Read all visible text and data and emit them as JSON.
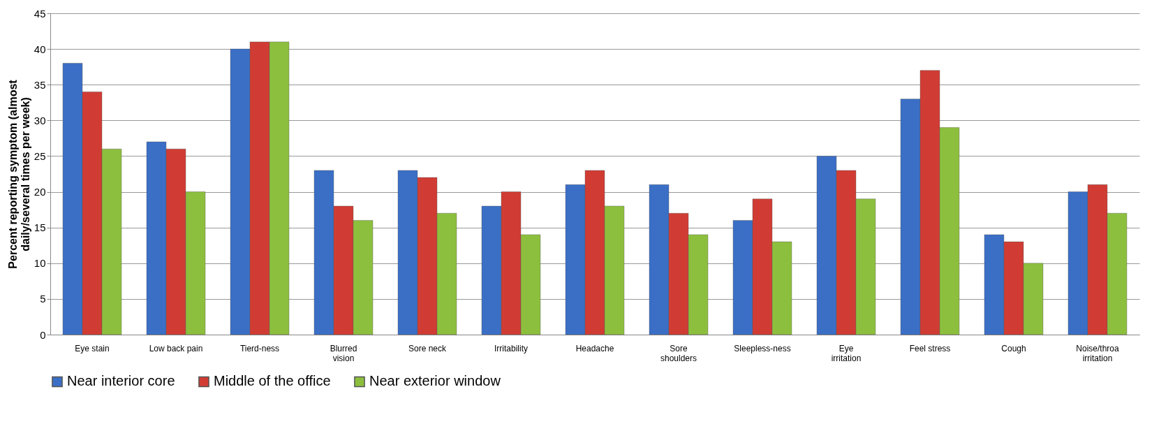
{
  "chart_data": {
    "type": "bar",
    "ylabel": "Percent reporting symptom (almost daily/several times per week)",
    "categories": [
      "Eye stain",
      "Low back pain",
      "Tierd-ness",
      "Blurred vision",
      "Sore neck",
      "Irritability",
      "Headache",
      "Sore shoulders",
      "Sleepless-ness",
      "Eye irritation",
      "Feel stress",
      "Cough",
      "Noise/throa irritation"
    ],
    "series": [
      {
        "name": "Near interior core",
        "color": "#3b6fc6",
        "values": [
          38,
          27,
          40,
          23,
          23,
          18,
          21,
          21,
          16,
          25,
          33,
          14,
          20
        ]
      },
      {
        "name": "Middle of the office",
        "color": "#d03c34",
        "values": [
          34,
          26,
          41,
          18,
          22,
          20,
          23,
          17,
          19,
          23,
          37,
          13,
          21
        ]
      },
      {
        "name": "Near exterior window",
        "color": "#8dbf3e",
        "values": [
          26,
          20,
          41,
          16,
          17,
          14,
          18,
          14,
          13,
          19,
          29,
          10,
          17
        ]
      }
    ],
    "ylim": [
      0,
      45
    ],
    "yticks": [
      0,
      5,
      10,
      15,
      20,
      25,
      30,
      35,
      40,
      45
    ],
    "grid": "y",
    "legend": "bottom"
  }
}
